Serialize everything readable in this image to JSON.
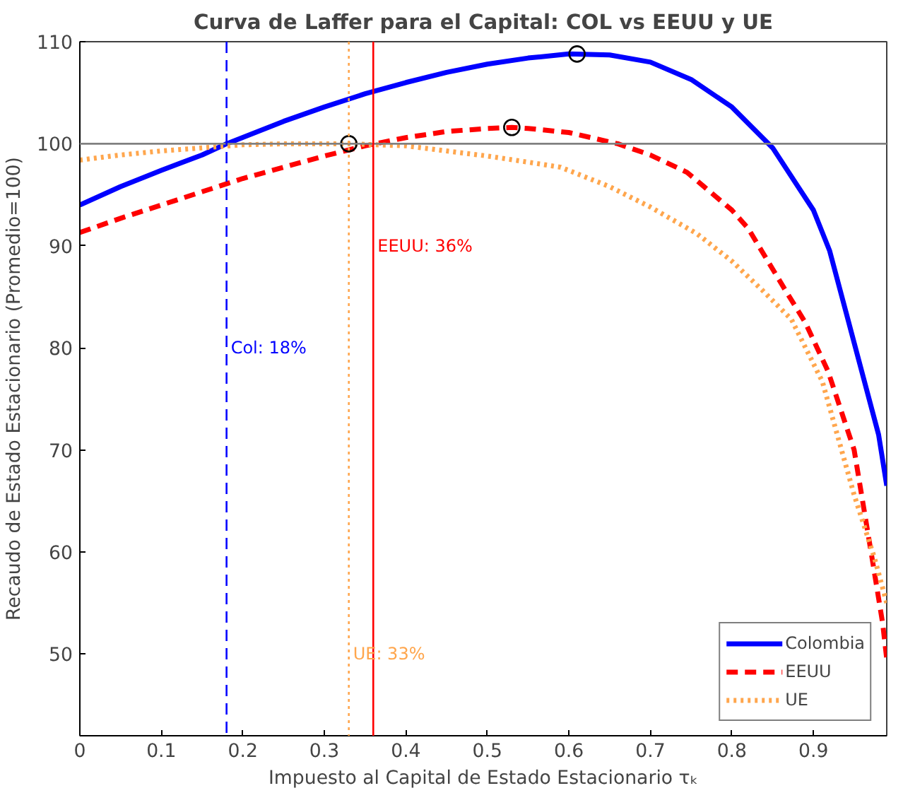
{
  "chart_data": {
    "type": "line",
    "title": "Curva de Laffer para el Capital: COL vs EEUU y UE",
    "xlabel": "Impuesto al Capital de Estado Estacionario τₖ",
    "ylabel": "Recaudo de Estado Estacionario (Promedio=100)",
    "xlim": [
      0,
      0.99
    ],
    "ylim": [
      42,
      110
    ],
    "xticks": [
      0,
      0.1,
      0.2,
      0.3,
      0.4,
      0.5,
      0.6,
      0.7,
      0.8,
      0.9
    ],
    "yticks": [
      50,
      60,
      70,
      80,
      90,
      100,
      110
    ],
    "grid": false,
    "legend": "bottom right",
    "series": [
      {
        "name": "Colombia",
        "color": "#0000ff",
        "line_style": "solid",
        "x": [
          0,
          0.05,
          0.1,
          0.15,
          0.18,
          0.25,
          0.3,
          0.35,
          0.4,
          0.45,
          0.5,
          0.55,
          0.6,
          0.65,
          0.7,
          0.75,
          0.8,
          0.85,
          0.9,
          0.92,
          0.94,
          0.96,
          0.98,
          0.99
        ],
        "values": [
          94,
          95.8,
          97.4,
          98.9,
          100,
          102.2,
          103.6,
          104.9,
          106,
          107,
          107.8,
          108.4,
          108.8,
          108.7,
          108,
          106.3,
          103.6,
          99.6,
          93.5,
          89.5,
          83.5,
          77.5,
          71.5,
          66.5
        ]
      },
      {
        "name": "EEUU",
        "color": "#ff0000",
        "line_style": "dashed",
        "x": [
          0,
          0.05,
          0.1,
          0.15,
          0.2,
          0.25,
          0.3,
          0.35,
          0.4,
          0.45,
          0.5,
          0.53,
          0.55,
          0.6,
          0.66,
          0.7,
          0.745,
          0.8,
          0.82,
          0.866,
          0.89,
          0.918,
          0.95,
          0.972,
          0.985,
          0.99
        ],
        "values": [
          91.3,
          92.7,
          94,
          95.3,
          96.6,
          97.7,
          98.8,
          99.8,
          100.6,
          101.2,
          101.5,
          101.6,
          101.5,
          101.1,
          100,
          98.9,
          97.2,
          93.5,
          91.7,
          85.6,
          82.5,
          77.7,
          70,
          59.4,
          53,
          49.5
        ]
      },
      {
        "name": "UE",
        "color": "#ffa64d",
        "line_style": "dotted",
        "x": [
          0,
          0.05,
          0.1,
          0.15,
          0.2,
          0.25,
          0.33,
          0.4,
          0.45,
          0.5,
          0.55,
          0.59,
          0.65,
          0.7,
          0.757,
          0.8,
          0.838,
          0.873,
          0.911,
          0.95,
          0.975,
          0.99
        ],
        "values": [
          98.4,
          98.9,
          99.3,
          99.6,
          99.9,
          100,
          100,
          99.8,
          99.3,
          98.8,
          98.2,
          97.7,
          95.8,
          93.8,
          91.2,
          88.5,
          85.6,
          82.8,
          76.7,
          65.6,
          59.4,
          55
        ]
      },
      {
        "type": "scatter",
        "marker": "circle",
        "color": "#000000",
        "x": [
          0.61,
          0.53,
          0.33
        ],
        "values": [
          108.8,
          101.6,
          100
        ]
      }
    ],
    "ref_lines": [
      {
        "axis": "y",
        "value": 100,
        "color": "#808080",
        "line_style": "solid"
      },
      {
        "axis": "x",
        "value": 0.18,
        "color": "#0000ff",
        "line_style": "dashed"
      },
      {
        "axis": "x",
        "value": 0.36,
        "color": "#ff0000",
        "line_style": "solid"
      },
      {
        "axis": "x",
        "value": 0.33,
        "color": "#ffa64d",
        "line_style": "dotted"
      }
    ],
    "annotations": [
      {
        "text": "Col: 18%",
        "x": 0.18,
        "y": 80
      },
      {
        "text": "EEUU: 36%",
        "x": 0.36,
        "y": 90
      },
      {
        "text": "UE: 33%",
        "x": 0.33,
        "y": 50
      }
    ]
  }
}
